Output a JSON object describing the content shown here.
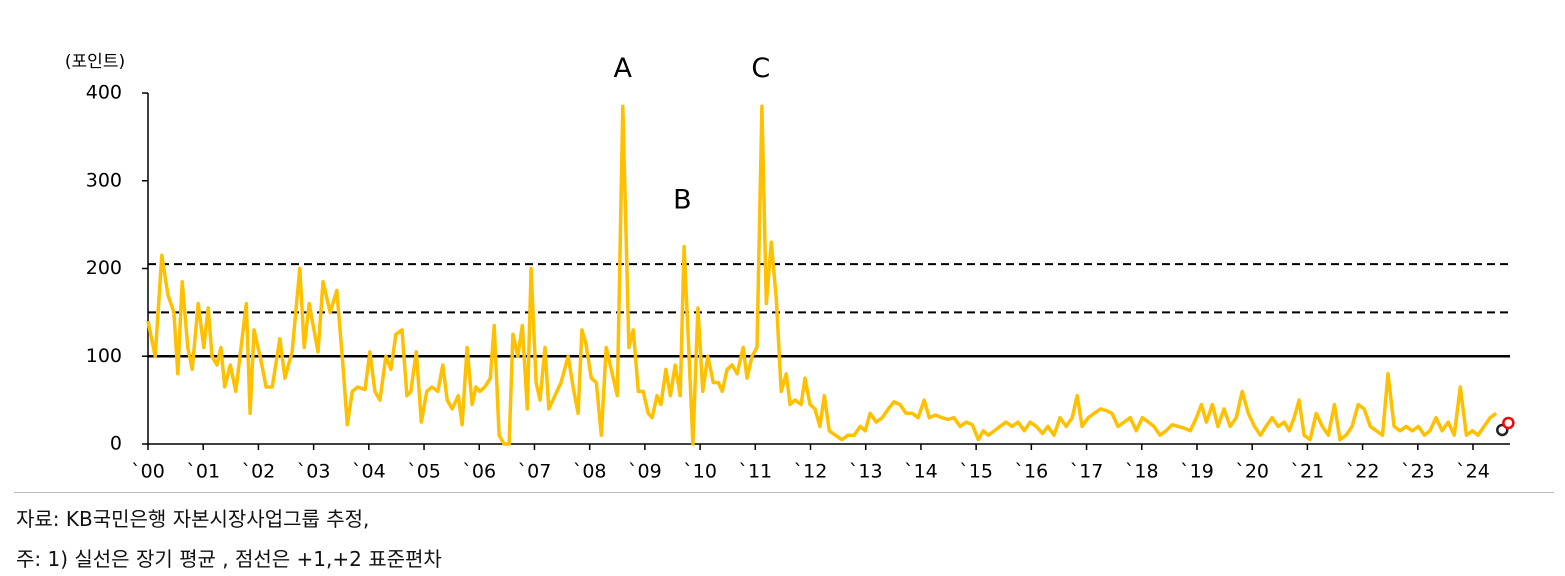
{
  "chart_data": {
    "type": "line",
    "y_unit_label": "(포인트)",
    "color": "#FFC000",
    "x": [
      2000.0,
      2000.13,
      2000.25,
      2000.36,
      2000.47,
      2000.54,
      2000.62,
      2000.72,
      2000.8,
      2000.91,
      2001.01,
      2001.09,
      2001.16,
      2001.25,
      2001.32,
      2001.39,
      2001.49,
      2001.59,
      2001.78,
      2001.85,
      2001.92,
      2002.03,
      2002.14,
      2002.25,
      2002.39,
      2002.48,
      2002.61,
      2002.75,
      2002.83,
      2002.92,
      2003.08,
      2003.17,
      2003.3,
      2003.42,
      2003.53,
      2003.61,
      2003.7,
      2003.8,
      2003.93,
      2004.02,
      2004.11,
      2004.2,
      2004.31,
      2004.4,
      2004.49,
      2004.6,
      2004.69,
      2004.76,
      2004.86,
      2004.95,
      2005.05,
      2005.14,
      2005.25,
      2005.34,
      2005.42,
      2005.51,
      2005.62,
      2005.69,
      2005.78,
      2005.87,
      2005.94,
      2006.01,
      2006.1,
      2006.2,
      2006.27,
      2006.36,
      2006.45,
      2006.54,
      2006.61,
      2006.7,
      2006.78,
      2006.87,
      2006.94,
      2007.03,
      2007.1,
      2007.19,
      2007.26,
      2007.37,
      2007.48,
      2007.61,
      2007.7,
      2007.79,
      2007.86,
      2007.93,
      2008.03,
      2008.12,
      2008.21,
      2008.3,
      2008.39,
      2008.5,
      2008.6,
      2008.71,
      2008.79,
      2008.88,
      2008.97,
      2009.06,
      2009.13,
      2009.22,
      2009.29,
      2009.38,
      2009.46,
      2009.55,
      2009.64,
      2009.71,
      2009.78,
      2009.87,
      2009.96,
      2010.05,
      2010.14,
      2010.24,
      2010.33,
      2010.4,
      2010.49,
      2010.58,
      2010.67,
      2010.78,
      2010.85,
      2010.94,
      2011.03,
      2011.12,
      2011.2,
      2011.29,
      2011.38,
      2011.47,
      2011.56,
      2011.63,
      2011.72,
      2011.83,
      2011.9,
      2011.99,
      2012.08,
      2012.17,
      2012.25,
      2012.34,
      2012.45,
      2012.57,
      2012.68,
      2012.79,
      2012.9,
      2012.99,
      2013.08,
      2013.19,
      2013.3,
      2013.41,
      2013.51,
      2013.62,
      2013.73,
      2013.84,
      2013.95,
      2014.06,
      2014.15,
      2014.26,
      2014.38,
      2014.49,
      2014.6,
      2014.71,
      2014.82,
      2014.93,
      2015.04,
      2015.13,
      2015.22,
      2015.33,
      2015.43,
      2015.54,
      2015.65,
      2015.76,
      2015.87,
      2015.98,
      2016.09,
      2016.2,
      2016.3,
      2016.41,
      2016.52,
      2016.63,
      2016.74,
      2016.83,
      2016.92,
      2017.03,
      2017.14,
      2017.25,
      2017.36,
      2017.46,
      2017.57,
      2017.68,
      2017.79,
      2017.9,
      2018.01,
      2018.12,
      2018.22,
      2018.33,
      2018.44,
      2018.55,
      2018.66,
      2018.77,
      2018.88,
      2018.99,
      2019.08,
      2019.17,
      2019.28,
      2019.38,
      2019.49,
      2019.6,
      2019.71,
      2019.82,
      2019.93,
      2020.04,
      2020.15,
      2020.25,
      2020.36,
      2020.47,
      2020.58,
      2020.67,
      2020.76,
      2020.85,
      2020.94,
      2021.05,
      2021.16,
      2021.27,
      2021.38,
      2021.49,
      2021.59,
      2021.7,
      2021.81,
      2021.92,
      2022.03,
      2022.14,
      2022.25,
      2022.36,
      2022.46,
      2022.57,
      2022.68,
      2022.79,
      2022.9,
      2023.01,
      2023.12,
      2023.22,
      2023.33,
      2023.44,
      2023.55,
      2023.66,
      2023.77,
      2023.88,
      2023.99,
      2024.09,
      2024.2,
      2024.31,
      2024.42
    ],
    "values": [
      140,
      100,
      215,
      170,
      150,
      80,
      185,
      110,
      85,
      160,
      110,
      155,
      100,
      90,
      110,
      65,
      90,
      60,
      160,
      35,
      130,
      100,
      65,
      65,
      120,
      75,
      105,
      200,
      110,
      160,
      105,
      185,
      150,
      175,
      90,
      22,
      60,
      65,
      62,
      105,
      60,
      50,
      100,
      85,
      125,
      130,
      55,
      60,
      105,
      25,
      60,
      65,
      60,
      90,
      50,
      40,
      55,
      22,
      110,
      45,
      65,
      60,
      65,
      75,
      135,
      10,
      0,
      0,
      125,
      100,
      135,
      40,
      200,
      70,
      50,
      110,
      40,
      55,
      70,
      100,
      65,
      35,
      130,
      115,
      75,
      70,
      10,
      110,
      85,
      55,
      385,
      110,
      130,
      60,
      60,
      35,
      30,
      55,
      45,
      85,
      55,
      90,
      55,
      225,
      130,
      0,
      155,
      60,
      100,
      70,
      70,
      60,
      85,
      90,
      80,
      110,
      75,
      100,
      110,
      385,
      160,
      230,
      165,
      60,
      80,
      45,
      50,
      45,
      75,
      45,
      40,
      20,
      55,
      15,
      10,
      5,
      10,
      10,
      20,
      15,
      35,
      25,
      30,
      40,
      48,
      45,
      35,
      35,
      30,
      50,
      30,
      33,
      30,
      28,
      30,
      20,
      25,
      22,
      5,
      15,
      10,
      15,
      20,
      25,
      20,
      25,
      15,
      25,
      20,
      12,
      20,
      10,
      30,
      20,
      30,
      55,
      20,
      30,
      35,
      40,
      38,
      35,
      20,
      25,
      30,
      15,
      30,
      25,
      20,
      10,
      15,
      22,
      20,
      18,
      15,
      30,
      45,
      25,
      45,
      20,
      40,
      20,
      30,
      60,
      35,
      20,
      10,
      20,
      30,
      20,
      25,
      15,
      30,
      50,
      10,
      5,
      35,
      20,
      10,
      45,
      5,
      10,
      20,
      45,
      40,
      20,
      15,
      10,
      80,
      20,
      15,
      20,
      15,
      20,
      10,
      15,
      30,
      15,
      25,
      10,
      65,
      10,
      15,
      10,
      20,
      30,
      35
    ],
    "end_markers": [
      {
        "x": 2024.53,
        "value": 16,
        "color": "#222222"
      },
      {
        "x": 2024.64,
        "value": 24,
        "color": "#FF0000"
      }
    ],
    "reference_lines": [
      {
        "value": 100,
        "style": "solid"
      },
      {
        "value": 150,
        "style": "dashed"
      },
      {
        "value": 205,
        "style": "dashed"
      }
    ],
    "annotations": [
      {
        "text": "A",
        "x": 2008.6,
        "y": 427
      },
      {
        "text": "B",
        "x": 2009.68,
        "y": 277
      },
      {
        "text": "C",
        "x": 2011.1,
        "y": 427
      }
    ],
    "xlim": [
      2000,
      2024.67
    ],
    "ylim": [
      0,
      400
    ],
    "yticks": [
      0,
      100,
      200,
      300,
      400
    ],
    "xticks": [
      {
        "value": 2000,
        "label": "`00"
      },
      {
        "value": 2001,
        "label": "`01"
      },
      {
        "value": 2002,
        "label": "`02"
      },
      {
        "value": 2003,
        "label": "`03"
      },
      {
        "value": 2004,
        "label": "`04"
      },
      {
        "value": 2005,
        "label": "`05"
      },
      {
        "value": 2006,
        "label": "`06"
      },
      {
        "value": 2007,
        "label": "`07"
      },
      {
        "value": 2008,
        "label": "`08"
      },
      {
        "value": 2009,
        "label": "`09"
      },
      {
        "value": 2010,
        "label": "`10"
      },
      {
        "value": 2011,
        "label": "`11"
      },
      {
        "value": 2012,
        "label": "`12"
      },
      {
        "value": 2013,
        "label": "`13"
      },
      {
        "value": 2014,
        "label": "`14"
      },
      {
        "value": 2015,
        "label": "`15"
      },
      {
        "value": 2016,
        "label": "`16"
      },
      {
        "value": 2017,
        "label": "`17"
      },
      {
        "value": 2018,
        "label": "`18"
      },
      {
        "value": 2019,
        "label": "`19"
      },
      {
        "value": 2020,
        "label": "`20"
      },
      {
        "value": 2021,
        "label": "`21"
      },
      {
        "value": 2022,
        "label": "`22"
      },
      {
        "value": 2023,
        "label": "`23"
      },
      {
        "value": 2024,
        "label": "`24"
      }
    ],
    "notes": [
      "자료: KB국민은행 자본시장사업그룹 추정,",
      "주: 1) 실선은 장기 평균 , 점선은 +1,+2 표준편차"
    ]
  }
}
